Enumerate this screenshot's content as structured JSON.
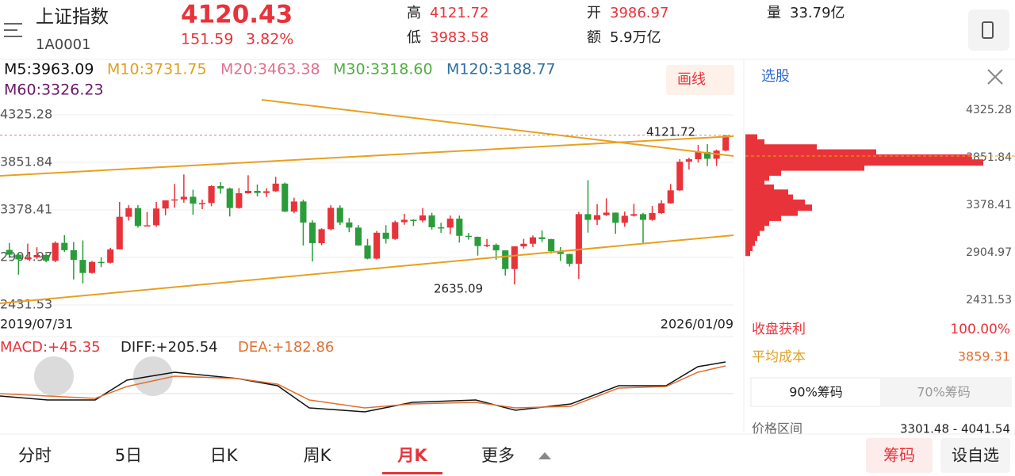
{
  "header": {
    "name": "上证指数",
    "code": "1A0001",
    "price": "4120.43",
    "change": "151.59",
    "change_pct": "3.82%",
    "high_label": "高",
    "high": "4121.72",
    "low_label": "低",
    "low": "3983.58",
    "open_label": "开",
    "open": "3986.97",
    "amount_label": "额",
    "amount": "5.9万亿",
    "volume_label": "量",
    "volume": "33.79亿"
  },
  "ma_labels": [
    {
      "text": "M5:3963.09",
      "color": "#111111"
    },
    {
      "text": "M10:3731.75",
      "color": "#e0a020"
    },
    {
      "text": "M20:3463.38",
      "color": "#e07090"
    },
    {
      "text": "M30:3318.60",
      "color": "#50b040"
    },
    {
      "text": "M120:3188.77",
      "color": "#3070a0"
    },
    {
      "text": "M60:3326.23",
      "color": "#6a1a6a"
    }
  ],
  "draw_button": "画线",
  "chart_data": {
    "type": "candlestick",
    "ylim": [
      2431.53,
      4325.28
    ],
    "yticks": [
      4325.28,
      3851.84,
      3378.41,
      2904.97,
      2431.53
    ],
    "start_date": "2019/07/31",
    "end_date": "2026/01/09",
    "up_color": "#e8333a",
    "down_color": "#2a9d3a",
    "annotations": [
      {
        "text": "4121.72",
        "value": 4121.72
      },
      {
        "text": "2635.09",
        "value": 2635.09
      }
    ],
    "candles": [
      [
        2980,
        3049,
        2900,
        2932
      ],
      [
        2932,
        2950,
        2733,
        2886
      ],
      [
        2886,
        3042,
        2880,
        2905
      ],
      [
        2905,
        3006,
        2891,
        2929
      ],
      [
        2929,
        2943,
        2857,
        2871
      ],
      [
        2871,
        3064,
        2858,
        3050
      ],
      [
        3050,
        3127,
        2960,
        2977
      ],
      [
        2977,
        3058,
        2685,
        2880
      ],
      [
        2880,
        3074,
        2646,
        2750
      ],
      [
        2750,
        2870,
        2743,
        2860
      ],
      [
        2860,
        2905,
        2808,
        2852
      ],
      [
        2852,
        3000,
        2845,
        2985
      ],
      [
        2985,
        3458,
        2985,
        3310
      ],
      [
        3310,
        3425,
        3272,
        3396
      ],
      [
        3396,
        3425,
        3202,
        3218
      ],
      [
        3218,
        3358,
        3218,
        3225
      ],
      [
        3225,
        3457,
        3209,
        3392
      ],
      [
        3392,
        3474,
        3325,
        3473
      ],
      [
        3473,
        3637,
        3400,
        3483
      ],
      [
        3483,
        3731,
        3450,
        3509
      ],
      [
        3509,
        3579,
        3329,
        3441
      ],
      [
        3441,
        3481,
        3386,
        3447
      ],
      [
        3447,
        3625,
        3415,
        3615
      ],
      [
        3615,
        3654,
        3540,
        3591
      ],
      [
        3591,
        3600,
        3313,
        3397
      ],
      [
        3397,
        3596,
        3390,
        3544
      ],
      [
        3544,
        3723,
        3540,
        3568
      ],
      [
        3568,
        3631,
        3512,
        3547
      ],
      [
        3547,
        3594,
        3506,
        3564
      ],
      [
        3564,
        3708,
        3557,
        3640
      ],
      [
        3640,
        3651,
        3357,
        3361
      ],
      [
        3361,
        3500,
        3345,
        3462
      ],
      [
        3462,
        3480,
        3023,
        3252
      ],
      [
        3252,
        3274,
        2864,
        3047
      ],
      [
        3047,
        3195,
        3025,
        3186
      ],
      [
        3186,
        3425,
        3175,
        3399
      ],
      [
        3399,
        3424,
        3227,
        3253
      ],
      [
        3253,
        3298,
        3156,
        3202
      ],
      [
        3202,
        3228,
        3021,
        3024
      ],
      [
        3024,
        3089,
        2886,
        2893
      ],
      [
        2893,
        3169,
        2885,
        3151
      ],
      [
        3151,
        3226,
        3043,
        3089
      ],
      [
        3089,
        3272,
        3080,
        3256
      ],
      [
        3256,
        3340,
        3230,
        3280
      ],
      [
        3280,
        3285,
        3218,
        3273
      ],
      [
        3273,
        3397,
        3255,
        3323
      ],
      [
        3323,
        3349,
        3182,
        3205
      ],
      [
        3205,
        3250,
        3150,
        3202
      ],
      [
        3202,
        3322,
        3135,
        3291
      ],
      [
        3291,
        3322,
        3053,
        3120
      ],
      [
        3120,
        3148,
        3082,
        3110
      ],
      [
        3110,
        3113,
        2923,
        3018
      ],
      [
        3018,
        3089,
        3007,
        3030
      ],
      [
        3030,
        3043,
        2882,
        2975
      ],
      [
        2975,
        2976,
        2724,
        2789
      ],
      [
        2789,
        3015,
        2635.09,
        3015
      ],
      [
        3015,
        3090,
        2993,
        3041
      ],
      [
        3041,
        3123,
        3009,
        3105
      ],
      [
        3105,
        3174,
        3058,
        3087
      ],
      [
        3087,
        3090,
        2945,
        2967
      ],
      [
        2967,
        3008,
        2869,
        2939
      ],
      [
        2939,
        2941,
        2815,
        2842
      ],
      [
        2842,
        3358,
        2689,
        3336
      ],
      [
        3336,
        3674,
        3152,
        3279
      ],
      [
        3279,
        3436,
        3227,
        3326
      ],
      [
        3326,
        3494,
        3318,
        3351
      ],
      [
        3351,
        3352,
        3140,
        3250
      ],
      [
        3250,
        3362,
        3210,
        3320
      ],
      [
        3320,
        3439,
        3312,
        3336
      ],
      [
        3336,
        3349,
        3040,
        3279
      ],
      [
        3279,
        3417,
        3270,
        3347
      ],
      [
        3347,
        3474,
        3337,
        3444
      ],
      [
        3444,
        3636,
        3440,
        3573
      ],
      [
        3573,
        3884,
        3566,
        3858
      ],
      [
        3858,
        3899,
        3780,
        3883
      ],
      [
        3883,
        4025,
        3850,
        3955
      ],
      [
        3955,
        4034,
        3815,
        3888
      ],
      [
        3888,
        3979,
        3816,
        3969
      ],
      [
        3969,
        4121.72,
        3962,
        4120.43
      ]
    ],
    "chip_prices": [
      4100,
      4050,
      4000,
      3950,
      3900,
      3850,
      3800,
      3750,
      3700,
      3650,
      3600,
      3550,
      3500,
      3450,
      3400,
      3350,
      3300,
      3250,
      3200,
      3150,
      3100,
      3050,
      3000,
      2950
    ],
    "chip_widths": [
      5,
      8,
      30,
      55,
      95,
      100,
      50,
      15,
      10,
      8,
      12,
      18,
      20,
      25,
      28,
      22,
      15,
      10,
      8,
      6,
      5,
      4,
      3,
      2
    ]
  },
  "macd": {
    "macd": "MACD:+45.35",
    "diff": "DIFF:+205.54",
    "dea": "DEA:+182.86"
  },
  "side": {
    "pick": "选股",
    "profit_label": "收盘获利",
    "profit": "100.00%",
    "cost_label": "平均成本",
    "cost": "3859.31",
    "tab1": "90%筹码",
    "tab2": "70%筹码",
    "range_label": "价格区间",
    "range": "3301.48 - 4041.54"
  },
  "tabs": [
    "分时",
    "5日",
    "日K",
    "周K",
    "月K",
    "更多"
  ],
  "buttons": {
    "chips": "筹码",
    "add": "设自选"
  }
}
